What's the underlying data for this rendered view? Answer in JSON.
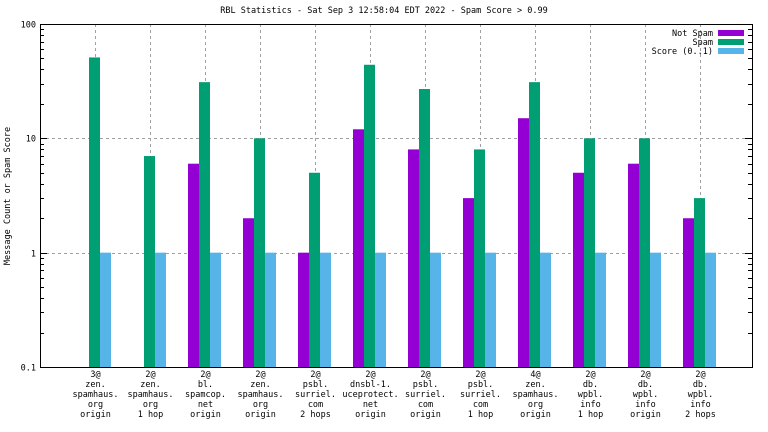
{
  "chart_data": {
    "type": "bar",
    "title": "RBL Statistics - Sat Sep  3 12:58:04 EDT 2022 - Spam Score > 0.99",
    "xlabel": "",
    "ylabel": "Message Count or Spam Score",
    "yscale": "log",
    "ylim": [
      0.1,
      100
    ],
    "yticks": [
      "0.1",
      "1",
      "10",
      "100"
    ],
    "grid": true,
    "legend_position": "top-right",
    "categories": [
      [
        "3@",
        "zen.",
        "spamhaus.",
        "org",
        "origin"
      ],
      [
        "2@",
        "zen.",
        "spamhaus.",
        "org",
        "1 hop"
      ],
      [
        "2@",
        "bl.",
        "spamcop.",
        "net",
        "origin"
      ],
      [
        "2@",
        "zen.",
        "spamhaus.",
        "org",
        "origin"
      ],
      [
        "2@",
        "psbl.",
        "surriel.",
        "com",
        "2 hops"
      ],
      [
        "2@",
        "dnsbl-1.",
        "uceprotect.",
        "net",
        "origin"
      ],
      [
        "2@",
        "psbl.",
        "surriel.",
        "com",
        "origin"
      ],
      [
        "2@",
        "psbl.",
        "surriel.",
        "com",
        "1 hop"
      ],
      [
        "4@",
        "zen.",
        "spamhaus.",
        "org",
        "origin"
      ],
      [
        "2@",
        "db.",
        "wpbl.",
        "info",
        "1 hop"
      ],
      [
        "2@",
        "db.",
        "wpbl.",
        "info",
        "origin"
      ],
      [
        "2@",
        "db.",
        "wpbl.",
        "info",
        "2 hops"
      ]
    ],
    "series": [
      {
        "name": "Not Spam",
        "color": "#9400d3",
        "values": [
          null,
          null,
          6,
          2,
          1,
          12,
          8,
          3,
          15,
          5,
          6,
          2
        ]
      },
      {
        "name": "Spam",
        "color": "#009e73",
        "values": [
          51,
          7,
          31,
          10,
          5,
          44,
          27,
          8,
          31,
          10,
          10,
          3
        ]
      },
      {
        "name": "Score (0..1)",
        "color": "#56b4e9",
        "values": [
          1,
          1,
          1,
          1,
          1,
          1,
          1,
          1,
          1,
          1,
          1,
          1
        ]
      }
    ]
  }
}
